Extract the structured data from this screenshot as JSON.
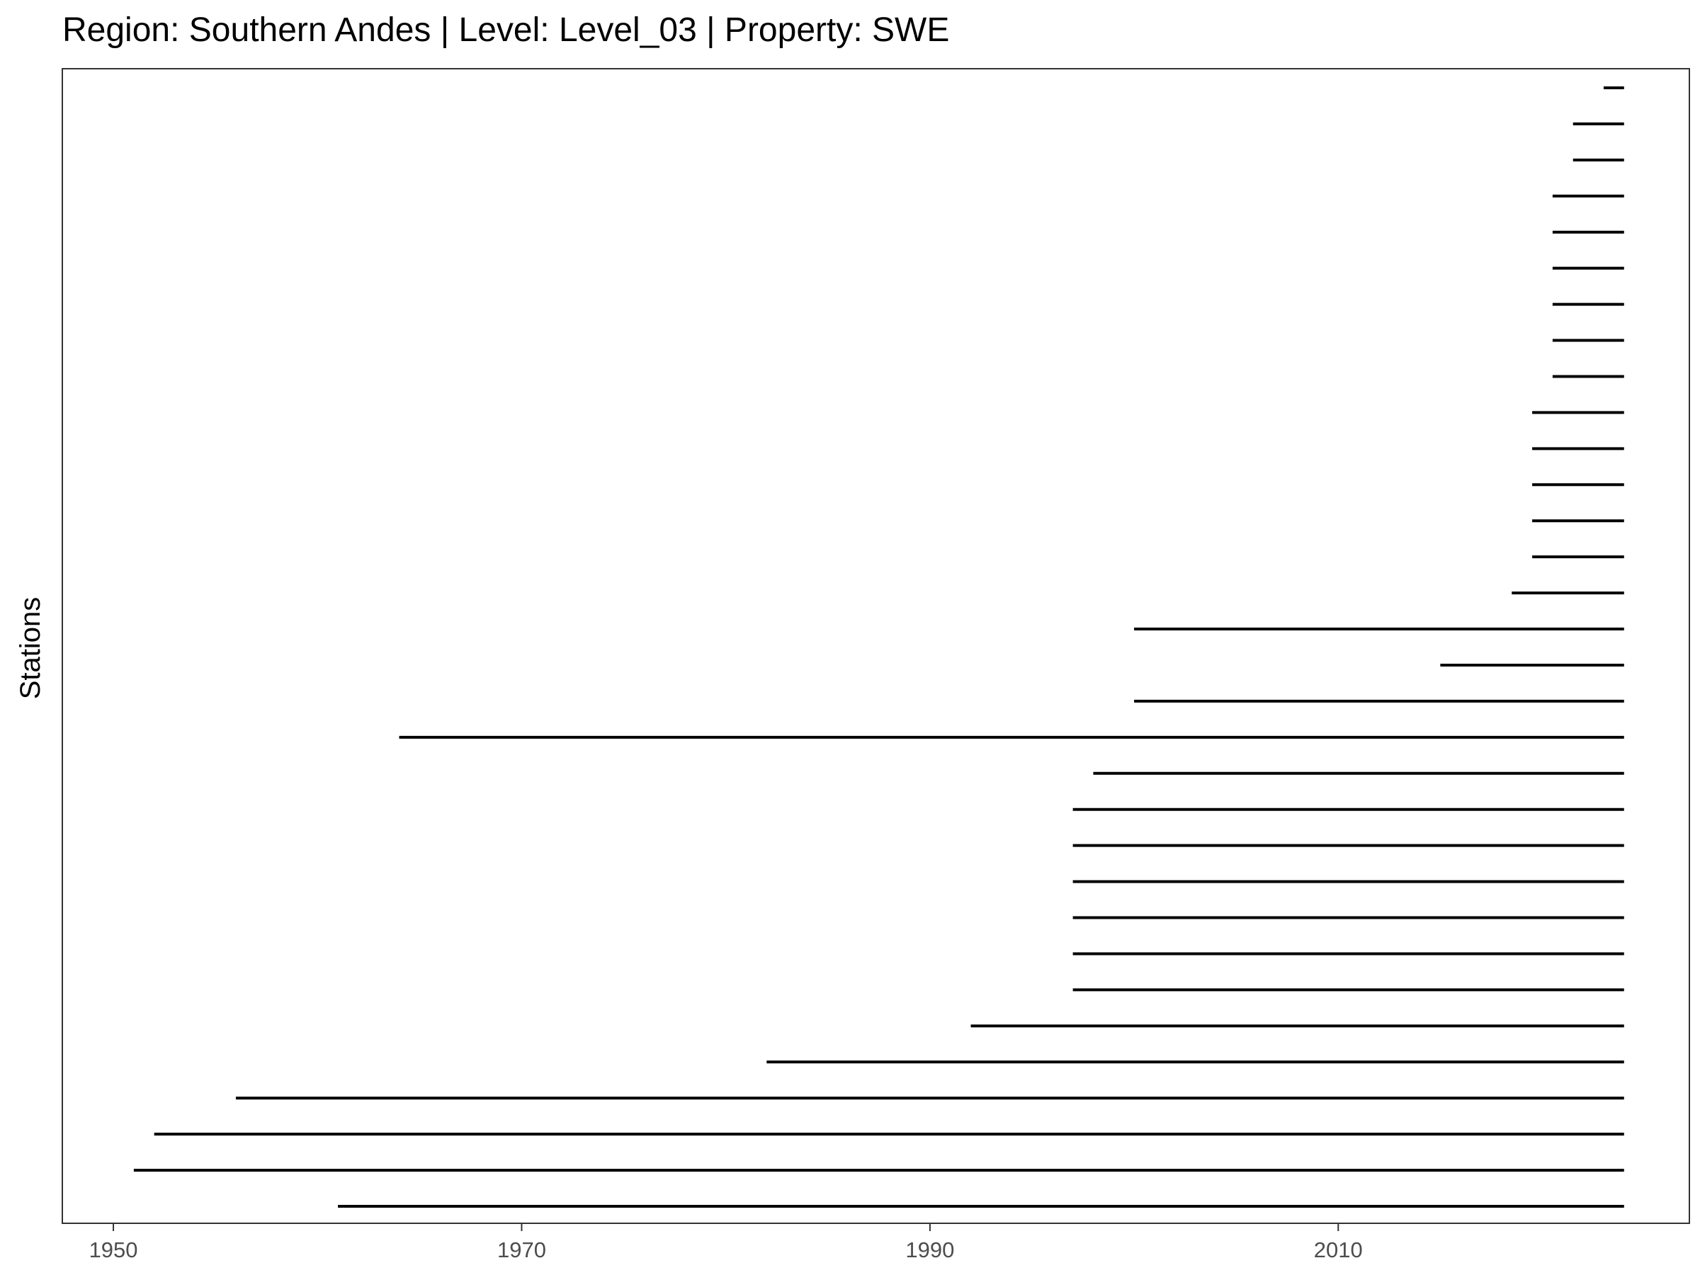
{
  "chart_data": {
    "type": "timeline",
    "title": "Region: Southern Andes | Level: Level_03 | Property: SWE",
    "xlabel": "",
    "ylabel": "Stations",
    "xlim": [
      1947.5,
      2027.2
    ],
    "x_ticks": [
      1950,
      1970,
      1990,
      2010
    ],
    "grid": false,
    "line_color": "#000000",
    "series": [
      {
        "start": 1961.0,
        "end": 2024.0
      },
      {
        "start": 1951.0,
        "end": 2024.0
      },
      {
        "start": 1952.0,
        "end": 2024.0
      },
      {
        "start": 1956.0,
        "end": 2024.0
      },
      {
        "start": 1982.0,
        "end": 2024.0
      },
      {
        "start": 1992.0,
        "end": 2024.0
      },
      {
        "start": 1997.0,
        "end": 2024.0
      },
      {
        "start": 1997.0,
        "end": 2024.0
      },
      {
        "start": 1997.0,
        "end": 2024.0
      },
      {
        "start": 1997.0,
        "end": 2024.0
      },
      {
        "start": 1997.0,
        "end": 2024.0
      },
      {
        "start": 1997.0,
        "end": 2024.0
      },
      {
        "start": 1998.0,
        "end": 2024.0
      },
      {
        "start": 1964.0,
        "end": 2024.0
      },
      {
        "start": 2000.0,
        "end": 2024.0
      },
      {
        "start": 2015.0,
        "end": 2024.0
      },
      {
        "start": 2000.0,
        "end": 2024.0
      },
      {
        "start": 2018.5,
        "end": 2024.0
      },
      {
        "start": 2019.5,
        "end": 2024.0
      },
      {
        "start": 2019.5,
        "end": 2024.0
      },
      {
        "start": 2019.5,
        "end": 2024.0
      },
      {
        "start": 2019.5,
        "end": 2024.0
      },
      {
        "start": 2019.5,
        "end": 2024.0
      },
      {
        "start": 2020.5,
        "end": 2024.0
      },
      {
        "start": 2020.5,
        "end": 2024.0
      },
      {
        "start": 2020.5,
        "end": 2024.0
      },
      {
        "start": 2020.5,
        "end": 2024.0
      },
      {
        "start": 2020.5,
        "end": 2024.0
      },
      {
        "start": 2020.5,
        "end": 2024.0
      },
      {
        "start": 2021.5,
        "end": 2024.0
      },
      {
        "start": 2021.5,
        "end": 2024.0
      },
      {
        "start": 2023.0,
        "end": 2024.0
      }
    ]
  }
}
